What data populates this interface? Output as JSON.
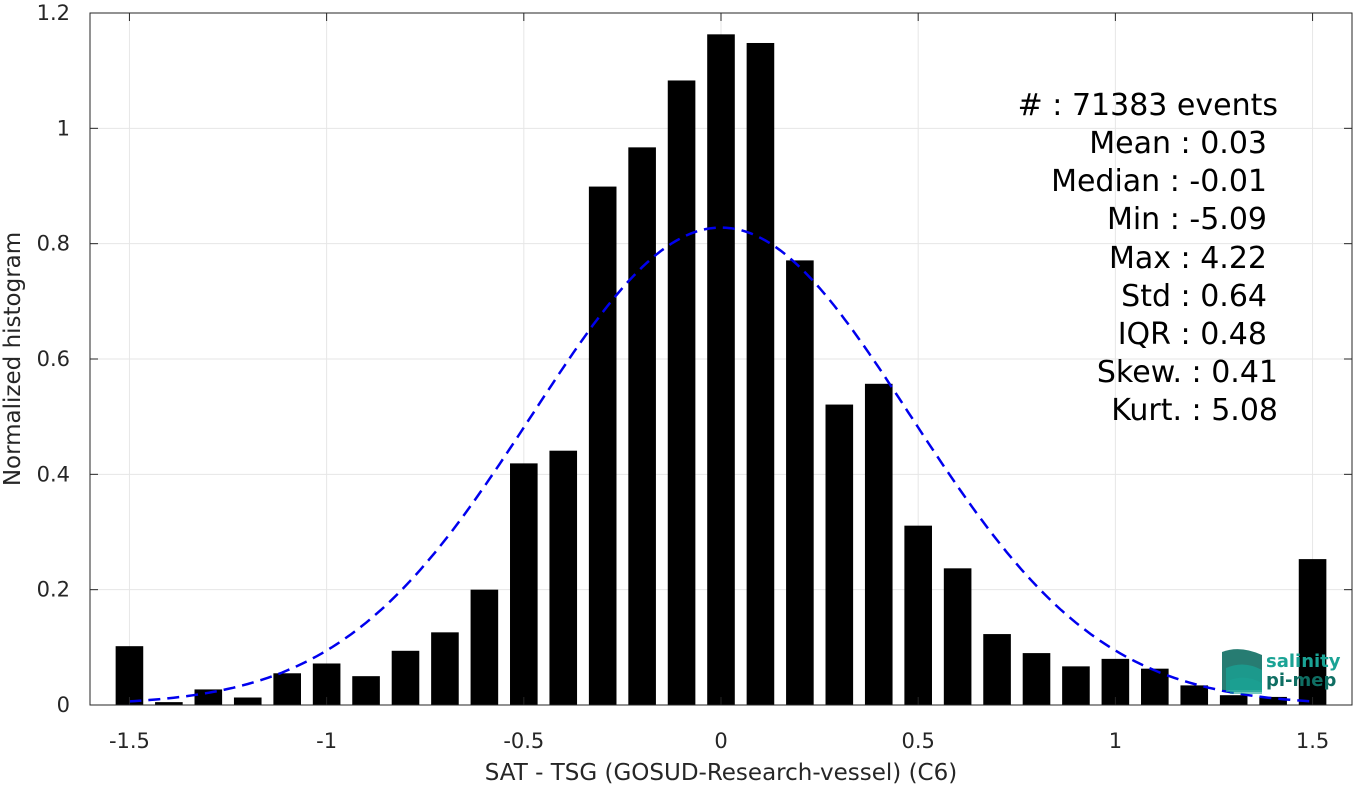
{
  "chart_data": {
    "type": "bar",
    "xlabel": "SAT - TSG (GOSUD-Research-vessel) (C6)",
    "ylabel": "Normalized histogram",
    "xlim": [
      -1.6,
      1.6
    ],
    "ylim": [
      0,
      1.2
    ],
    "xticks": [
      -1.5,
      -1,
      -0.5,
      0,
      0.5,
      1,
      1.5
    ],
    "xtick_labels": [
      "-1.5",
      "-1",
      "-0.5",
      "0",
      "0.5",
      "1",
      "1.5"
    ],
    "yticks": [
      0,
      0.2,
      0.4,
      0.6,
      0.8,
      1,
      1.2
    ],
    "ytick_labels": [
      "0",
      "0.2",
      "0.4",
      "0.6",
      "0.8",
      "1",
      "1.2"
    ],
    "grid": true,
    "bar_width": 0.07,
    "x": [
      -1.5,
      -1.4,
      -1.3,
      -1.2,
      -1.1,
      -1.0,
      -0.9,
      -0.8,
      -0.7,
      -0.6,
      -0.5,
      -0.4,
      -0.3,
      -0.2,
      -0.1,
      0.0,
      0.1,
      0.2,
      0.3,
      0.4,
      0.5,
      0.6,
      0.7,
      0.8,
      0.9,
      1.0,
      1.1,
      1.2,
      1.3,
      1.4,
      1.5
    ],
    "values": [
      0.102,
      0.005,
      0.027,
      0.013,
      0.055,
      0.072,
      0.05,
      0.094,
      0.126,
      0.2,
      0.419,
      0.441,
      0.899,
      0.967,
      1.083,
      1.163,
      1.148,
      0.771,
      0.521,
      0.557,
      0.311,
      0.237,
      0.123,
      0.09,
      0.067,
      0.08,
      0.063,
      0.034,
      0.017,
      0.014,
      0.253
    ],
    "bar_color": "#000000",
    "fit_curve": {
      "style": "dashed",
      "color": "#0000ee",
      "x_range": [
        -1.5,
        1.5
      ],
      "peak": 0.828,
      "mean": 0.0,
      "sigma": 0.48
    },
    "stats": [
      {
        "label": "#  : 71383 events"
      },
      {
        "label": "Mean : 0.03"
      },
      {
        "label": "Median : -0.01"
      },
      {
        "label": "Min : -5.09"
      },
      {
        "label": "Max : 4.22"
      },
      {
        "label": "Std : 0.64"
      },
      {
        "label": "IQR : 0.48"
      },
      {
        "label": "Skew. : 0.41"
      },
      {
        "label": "Kurt. : 5.08"
      }
    ]
  },
  "logo": {
    "line1": "salinity",
    "line2": "pi-mep",
    "colors": {
      "teal": "#1aa395",
      "dark": "#0f6e63"
    }
  }
}
